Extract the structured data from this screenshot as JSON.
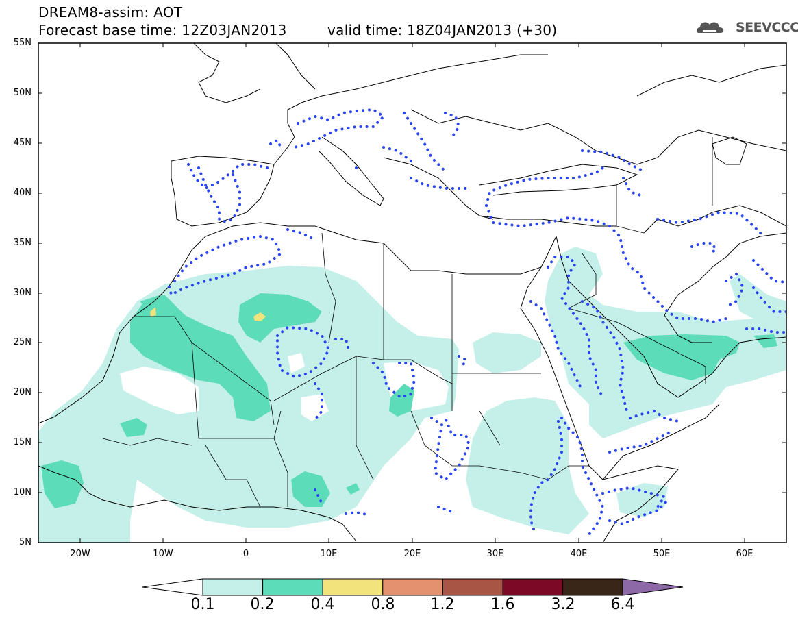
{
  "header": {
    "line1": "DREAM8-assim: AOT",
    "line2": "Forecast base time: 12Z03JAN2013",
    "line3": "valid time: 18Z04JAN2013 (+30)"
  },
  "logo": {
    "text": "SEEVCCC",
    "icon": "cloud-icon"
  },
  "axes": {
    "lat_labels": [
      "55N",
      "50N",
      "45N",
      "40N",
      "35N",
      "30N",
      "25N",
      "20N",
      "15N",
      "10N",
      "5N"
    ],
    "lon_labels": [
      "20W",
      "10W",
      "0",
      "10E",
      "20E",
      "30E",
      "40E",
      "50E",
      "60E"
    ]
  },
  "colorbar": {
    "labels": [
      "0.1",
      "0.2",
      "0.4",
      "0.8",
      "1.2",
      "1.6",
      "3.2",
      "6.4"
    ],
    "colors": [
      "#ffffff",
      "#c4f0e9",
      "#5ddcb9",
      "#f3e37c",
      "#e49170",
      "#a85545",
      "#7c0a26",
      "#3a2519",
      "#8d69a8"
    ]
  },
  "colors": {
    "light_teal": "#c4f0e9",
    "teal": "#5ddcb9",
    "yellow": "#f3e37c",
    "dotted_contour": "#2b46f0"
  }
}
